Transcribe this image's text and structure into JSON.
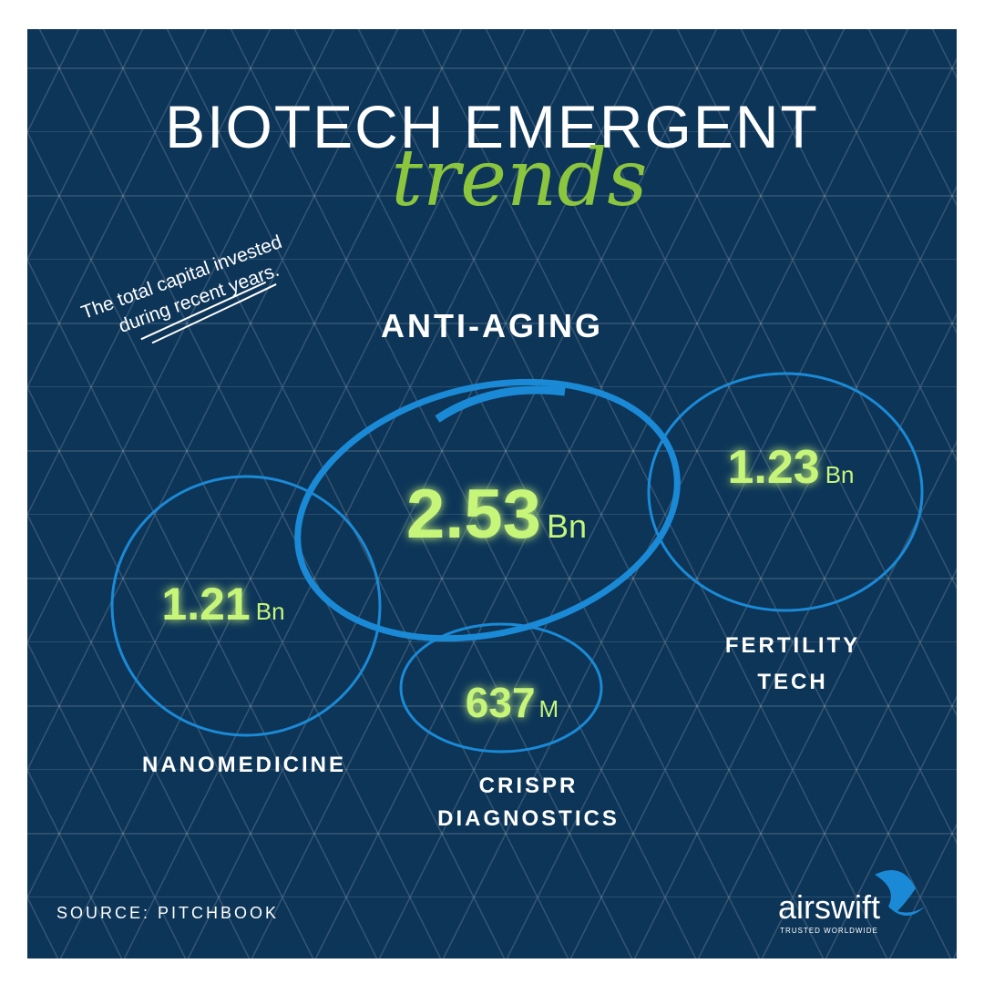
{
  "header": {
    "title": "BIOTECH EMERGENT",
    "script": "trends"
  },
  "note": {
    "lines": [
      "The total capital invested",
      "during recent years."
    ]
  },
  "trends": [
    {
      "label_lines": [
        "ANTI-AGING"
      ],
      "value": 2.53,
      "unit": "Bn"
    },
    {
      "label_lines": [
        "FERTILITY",
        "TECH"
      ],
      "value": 1.23,
      "unit": "Bn"
    },
    {
      "label_lines": [
        "NANOMEDICINE"
      ],
      "value": 1.21,
      "unit": "Bn"
    },
    {
      "label_lines": [
        "CRISPR",
        "DIAGNOSTICS"
      ],
      "value": 637,
      "unit": "M"
    }
  ],
  "source": "SOURCE: PITCHBOOK",
  "brand": {
    "name": "airswift",
    "tagline": "TRUSTED WORLDWIDE"
  }
}
